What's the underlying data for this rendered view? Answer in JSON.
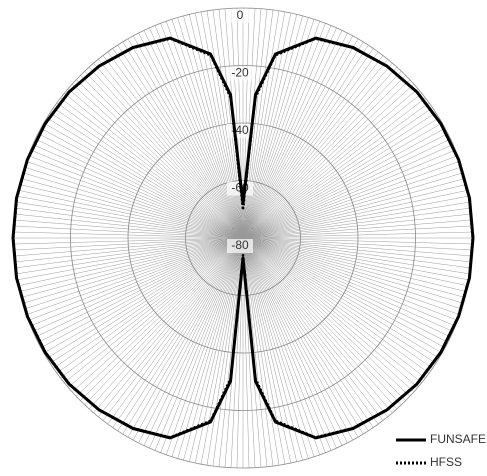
{
  "chart_data": {
    "type": "polar",
    "theta": [
      0,
      5,
      10,
      20,
      30,
      40,
      50,
      60,
      70,
      80,
      90,
      100,
      110,
      120,
      130,
      140,
      150,
      160,
      170,
      175,
      180,
      185,
      190,
      200,
      210,
      220,
      230,
      240,
      250,
      260,
      270,
      280,
      290,
      300,
      310,
      320,
      330,
      340,
      350,
      355,
      360
    ],
    "series": [
      {
        "name": "FUNSAFE",
        "color": "#000000",
        "dash": "solid",
        "values": [
          -68,
          -30,
          -15,
          -6,
          -3.5,
          -2,
          -1,
          -0.5,
          -0.2,
          0,
          0,
          0,
          -0.2,
          -0.5,
          -1,
          -2,
          -3.5,
          -6,
          -15,
          -30,
          -73,
          -30,
          -15,
          -6,
          -3.5,
          -2,
          -1,
          -0.5,
          -0.2,
          0,
          0,
          0,
          -0.2,
          -0.5,
          -1,
          -2,
          -3.5,
          -6,
          -15,
          -30,
          -68
        ]
      },
      {
        "name": "HFSS",
        "color": "#000000",
        "dash": "dotted",
        "values": [
          -70,
          -31,
          -15.5,
          -6.2,
          -3.6,
          -2.1,
          -1.1,
          -0.6,
          -0.3,
          -0.1,
          -0.1,
          -0.1,
          -0.3,
          -0.6,
          -1.1,
          -2.1,
          -3.6,
          -6.2,
          -15.5,
          -31,
          -74,
          -31,
          -15.5,
          -6.2,
          -3.6,
          -2.1,
          -1.1,
          -0.6,
          -0.3,
          -0.1,
          -0.1,
          -0.1,
          -0.3,
          -0.6,
          -1.1,
          -2.1,
          -3.6,
          -6.2,
          -15.5,
          -31,
          -70
        ]
      }
    ],
    "rlim": [
      -80,
      0
    ],
    "rticks": [
      0,
      -20,
      -40,
      -60,
      -80
    ],
    "grid": true,
    "legend": "lower right"
  }
}
